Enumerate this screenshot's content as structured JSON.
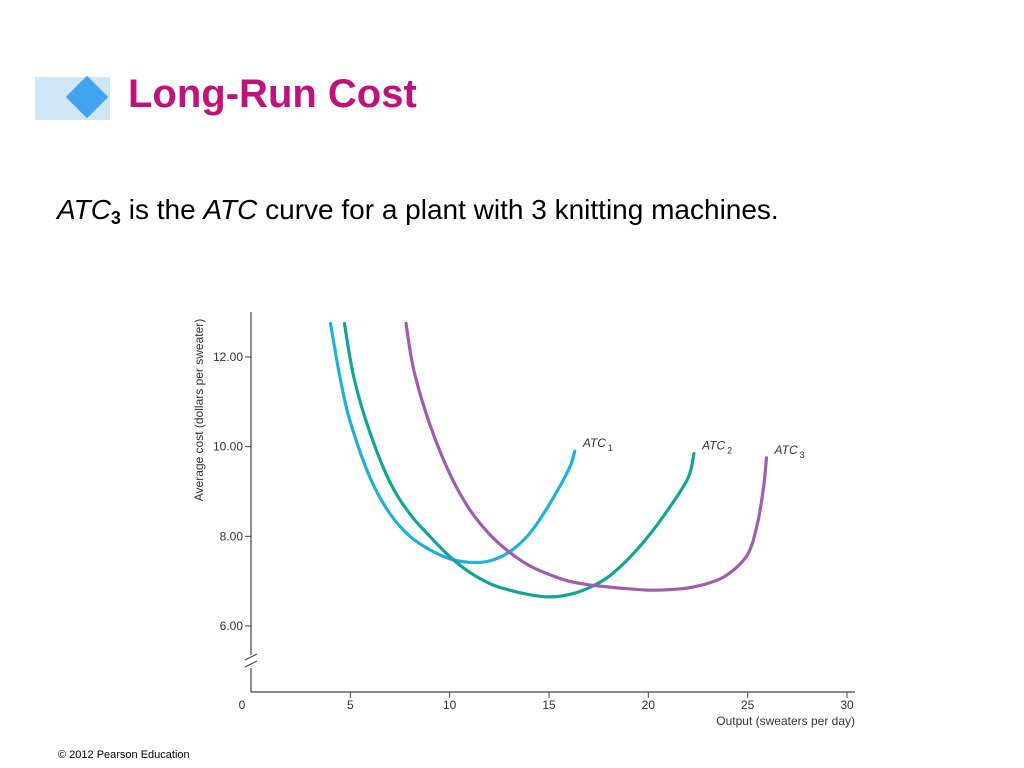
{
  "slide": {
    "title": "Long-Run Cost",
    "subtitle": {
      "atc": "ATC",
      "atc_sub": "3",
      "middle": " is the ",
      "atc2": "ATC",
      "rest": " curve for a plant with 3 knitting machines."
    },
    "footer": "© 2012 Pearson Education",
    "colors": {
      "title": "#c0127a",
      "accent_bar": "#cfe6f7",
      "accent_diamond": "#3fa3ee"
    }
  },
  "chart_data": {
    "type": "line",
    "xlabel": "Output (sweaters per day)",
    "ylabel": "Average cost (dollars per sweater)",
    "xlim": [
      0,
      30
    ],
    "ylim": [
      5,
      13
    ],
    "axis_break": true,
    "x_ticks": [
      {
        "value": 0,
        "label": "0"
      },
      {
        "value": 5,
        "label": "5"
      },
      {
        "value": 10,
        "label": "10"
      },
      {
        "value": 15,
        "label": "15"
      },
      {
        "value": 20,
        "label": "20"
      },
      {
        "value": 25,
        "label": "25"
      },
      {
        "value": 30,
        "label": "30"
      }
    ],
    "y_ticks": [
      {
        "value": 6,
        "label": "6.00"
      },
      {
        "value": 8,
        "label": "8.00"
      },
      {
        "value": 10,
        "label": "10.00"
      },
      {
        "value": 12,
        "label": "12.00"
      }
    ],
    "series": [
      {
        "name": "ATC",
        "sub": "1",
        "color": "#1fb0e2",
        "points": [
          [
            4.0,
            12.75
          ],
          [
            4.5,
            11.5
          ],
          [
            5.0,
            10.55
          ],
          [
            6.0,
            9.3
          ],
          [
            7.0,
            8.5
          ],
          [
            8.0,
            8.0
          ],
          [
            9.0,
            7.7
          ],
          [
            10.0,
            7.5
          ],
          [
            11.0,
            7.42
          ],
          [
            12.0,
            7.45
          ],
          [
            13.0,
            7.65
          ],
          [
            14.0,
            8.05
          ],
          [
            15.0,
            8.7
          ],
          [
            16.0,
            9.5
          ],
          [
            16.3,
            9.9
          ]
        ]
      },
      {
        "name": "ATC",
        "sub": "2",
        "color": "#12a596",
        "points": [
          [
            4.7,
            12.75
          ],
          [
            5.2,
            11.5
          ],
          [
            6.0,
            10.3
          ],
          [
            7.0,
            9.2
          ],
          [
            8.0,
            8.5
          ],
          [
            9.0,
            8.0
          ],
          [
            10.0,
            7.55
          ],
          [
            11.0,
            7.2
          ],
          [
            12.0,
            6.95
          ],
          [
            13.0,
            6.8
          ],
          [
            14.0,
            6.7
          ],
          [
            15.0,
            6.65
          ],
          [
            16.0,
            6.7
          ],
          [
            17.0,
            6.85
          ],
          [
            18.0,
            7.1
          ],
          [
            19.0,
            7.5
          ],
          [
            20.0,
            8.0
          ],
          [
            21.0,
            8.6
          ],
          [
            22.0,
            9.3
          ],
          [
            22.3,
            9.85
          ]
        ]
      },
      {
        "name": "ATC",
        "sub": "3",
        "color": "#a05db0",
        "points": [
          [
            7.8,
            12.75
          ],
          [
            8.2,
            11.7
          ],
          [
            9.0,
            10.5
          ],
          [
            10.0,
            9.4
          ],
          [
            11.0,
            8.6
          ],
          [
            12.0,
            8.05
          ],
          [
            13.0,
            7.65
          ],
          [
            14.0,
            7.35
          ],
          [
            15.0,
            7.15
          ],
          [
            16.0,
            7.0
          ],
          [
            17.0,
            6.92
          ],
          [
            18.0,
            6.87
          ],
          [
            19.0,
            6.83
          ],
          [
            20.0,
            6.8
          ],
          [
            21.0,
            6.81
          ],
          [
            22.0,
            6.85
          ],
          [
            23.0,
            6.95
          ],
          [
            24.0,
            7.15
          ],
          [
            25.0,
            7.6
          ],
          [
            25.5,
            8.3
          ],
          [
            25.8,
            9.1
          ],
          [
            25.95,
            9.75
          ]
        ]
      }
    ]
  }
}
